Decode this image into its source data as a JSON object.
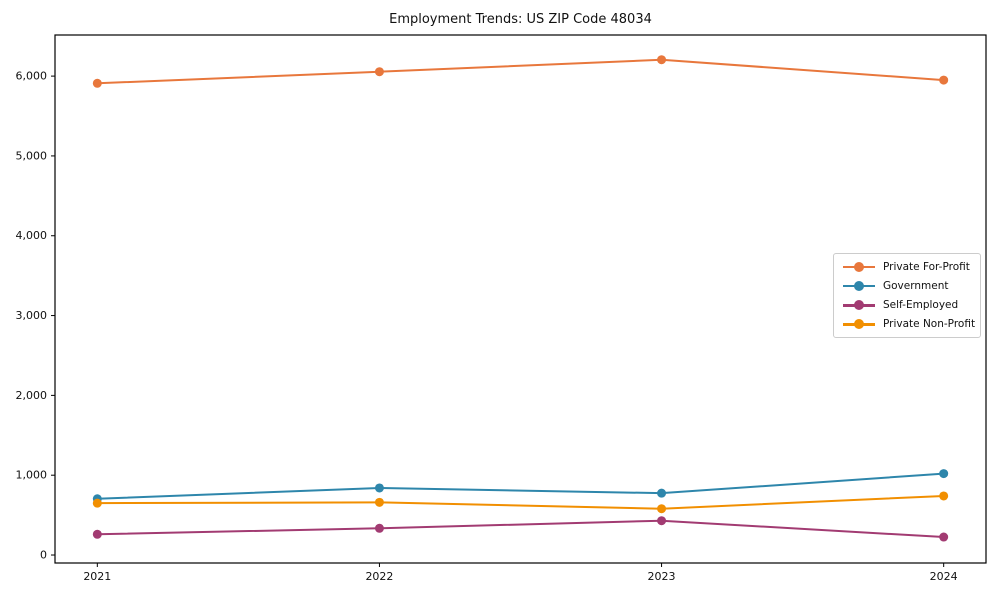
{
  "figure": {
    "background": "#ffffff"
  },
  "chart_data": {
    "type": "line",
    "title": "Employment Trends: US ZIP Code 48034",
    "xlabel": "",
    "ylabel": "",
    "x": [
      2021,
      2022,
      2023,
      2024
    ],
    "xticklabels": [
      "2021",
      "2022",
      "2023",
      "2024"
    ],
    "yticks": [
      0,
      1000,
      2000,
      3000,
      4000,
      5000,
      6000
    ],
    "yticklabels": [
      "0",
      "1,000",
      "2,000",
      "3,000",
      "4,000",
      "5,000",
      "6,000"
    ],
    "xlim": [
      2020.85,
      2024.15
    ],
    "ylim": [
      -100,
      6515
    ],
    "grid": false,
    "legend_position": "center-right",
    "series": [
      {
        "name": "Private For-Profit",
        "color": "#E8773C",
        "values": [
          5910,
          6055,
          6205,
          5950
        ]
      },
      {
        "name": "Government",
        "color": "#2E86AB",
        "values": [
          705,
          840,
          775,
          1020
        ]
      },
      {
        "name": "Self-Employed",
        "color": "#A23B72",
        "values": [
          260,
          335,
          430,
          225
        ]
      },
      {
        "name": "Private Non-Profit",
        "color": "#F18F01",
        "values": [
          650,
          660,
          580,
          740
        ]
      }
    ]
  }
}
